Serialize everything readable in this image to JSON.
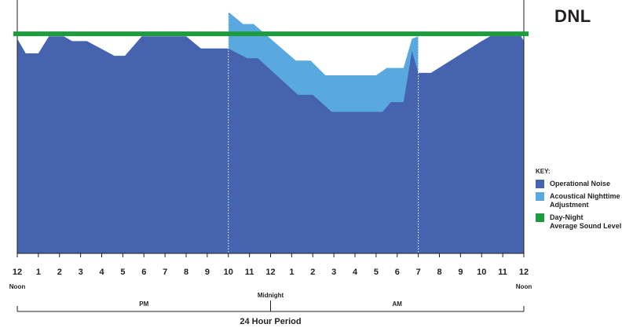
{
  "title": "DNL",
  "legend": {
    "heading": "KEY:",
    "items": [
      {
        "lines": [
          "Operational Noise"
        ],
        "color": "#4663b0"
      },
      {
        "lines": [
          "Acoustical Nighttime",
          "Adjustment"
        ],
        "color": "#5aa9de"
      },
      {
        "lines": [
          "Day-Night",
          "Average Sound Level"
        ],
        "color": "#1e9b3f"
      }
    ]
  },
  "x_axis": {
    "tick_labels": [
      "12",
      "1",
      "2",
      "3",
      "4",
      "5",
      "6",
      "7",
      "8",
      "9",
      "10",
      "11",
      "12",
      "1",
      "2",
      "3",
      "4",
      "5",
      "6",
      "7",
      "8",
      "9",
      "10",
      "11",
      "12"
    ],
    "markers": [
      {
        "hour": 0,
        "label": "Noon"
      },
      {
        "hour": 12,
        "label": "Midnight"
      },
      {
        "hour": 24,
        "label": "Noon"
      }
    ],
    "periods": [
      {
        "label": "PM",
        "from": 0,
        "to": 12
      },
      {
        "label": "AM",
        "from": 12,
        "to": 24
      }
    ],
    "xlabel": "24 Hour Period"
  },
  "chart_data": {
    "type": "area",
    "xlabel": "24 Hour Period",
    "x_range": [
      0,
      24
    ],
    "y_range": [
      0,
      100
    ],
    "grid": false,
    "nighttime_window": [
      10,
      19
    ],
    "operational_noise": [
      [
        0,
        88
      ],
      [
        0.4,
        82
      ],
      [
        1,
        82
      ],
      [
        1.5,
        89
      ],
      [
        2.2,
        89
      ],
      [
        2.6,
        87
      ],
      [
        3.3,
        87
      ],
      [
        4.6,
        81
      ],
      [
        5.1,
        81
      ],
      [
        5.9,
        89
      ],
      [
        7,
        89
      ],
      [
        8,
        89
      ],
      [
        8.7,
        84
      ],
      [
        10,
        84
      ],
      [
        10.9,
        80
      ],
      [
        11.4,
        80
      ],
      [
        13.3,
        65
      ],
      [
        14,
        65
      ],
      [
        14.9,
        58
      ],
      [
        17,
        58
      ],
      [
        17.3,
        58
      ],
      [
        17.7,
        62
      ],
      [
        18.3,
        62
      ],
      [
        18.7,
        83
      ],
      [
        19,
        74
      ],
      [
        19.6,
        74
      ],
      [
        22,
        87
      ],
      [
        22.6,
        90
      ],
      [
        23.8,
        90
      ],
      [
        24,
        87
      ]
    ],
    "nighttime_adjustment": [
      [
        10,
        99
      ],
      [
        10.7,
        94
      ],
      [
        11.2,
        94
      ],
      [
        12,
        88
      ],
      [
        13.2,
        79
      ],
      [
        13.9,
        79
      ],
      [
        14.6,
        73
      ],
      [
        16.3,
        73
      ],
      [
        17,
        73
      ],
      [
        17.5,
        76
      ],
      [
        18.3,
        76
      ],
      [
        18.7,
        88
      ],
      [
        19,
        89
      ]
    ],
    "dnl_level": 90,
    "series": [
      {
        "name": "Operational Noise",
        "color": "#4663b0"
      },
      {
        "name": "Acoustical Nighttime Adjustment",
        "color": "#5aa9de"
      },
      {
        "name": "Day-Night Average Sound Level",
        "color": "#1e9b3f"
      }
    ]
  }
}
